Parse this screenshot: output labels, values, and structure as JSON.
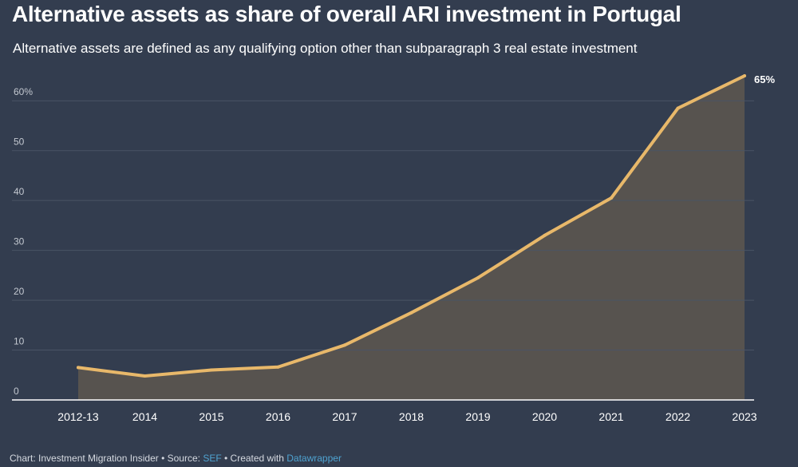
{
  "title": "Alternative assets as share of overall ARI investment in Portugal",
  "subtitle": "Alternative assets are defined as any qualifying option other than subparagraph 3 real estate investment",
  "footer": {
    "chart_prefix": "Chart: Investment Migration Insider • Source: ",
    "source_link": "SEF",
    "created_text": " • Created with ",
    "tool_link": "Datawrapper"
  },
  "colors": {
    "background": "#333d4f",
    "line": "#e8b86a",
    "area": "#57534f",
    "grid": "#4a5465",
    "tick_text": "#c3c8d0"
  },
  "chart_data": {
    "type": "area",
    "categories": [
      "2012-13",
      "2014",
      "2015",
      "2016",
      "2017",
      "2018",
      "2019",
      "2020",
      "2021",
      "2022",
      "2023"
    ],
    "values": [
      6.5,
      4.8,
      6.0,
      6.6,
      11.0,
      17.5,
      24.5,
      33.0,
      40.5,
      58.5,
      65
    ],
    "y_ticks": [
      0,
      10,
      20,
      30,
      40,
      50,
      60
    ],
    "y_tick_labels": [
      "0",
      "10",
      "20",
      "30",
      "40",
      "50",
      "60%"
    ],
    "ylim": [
      0,
      65
    ],
    "end_label": "65%",
    "grid": true
  }
}
